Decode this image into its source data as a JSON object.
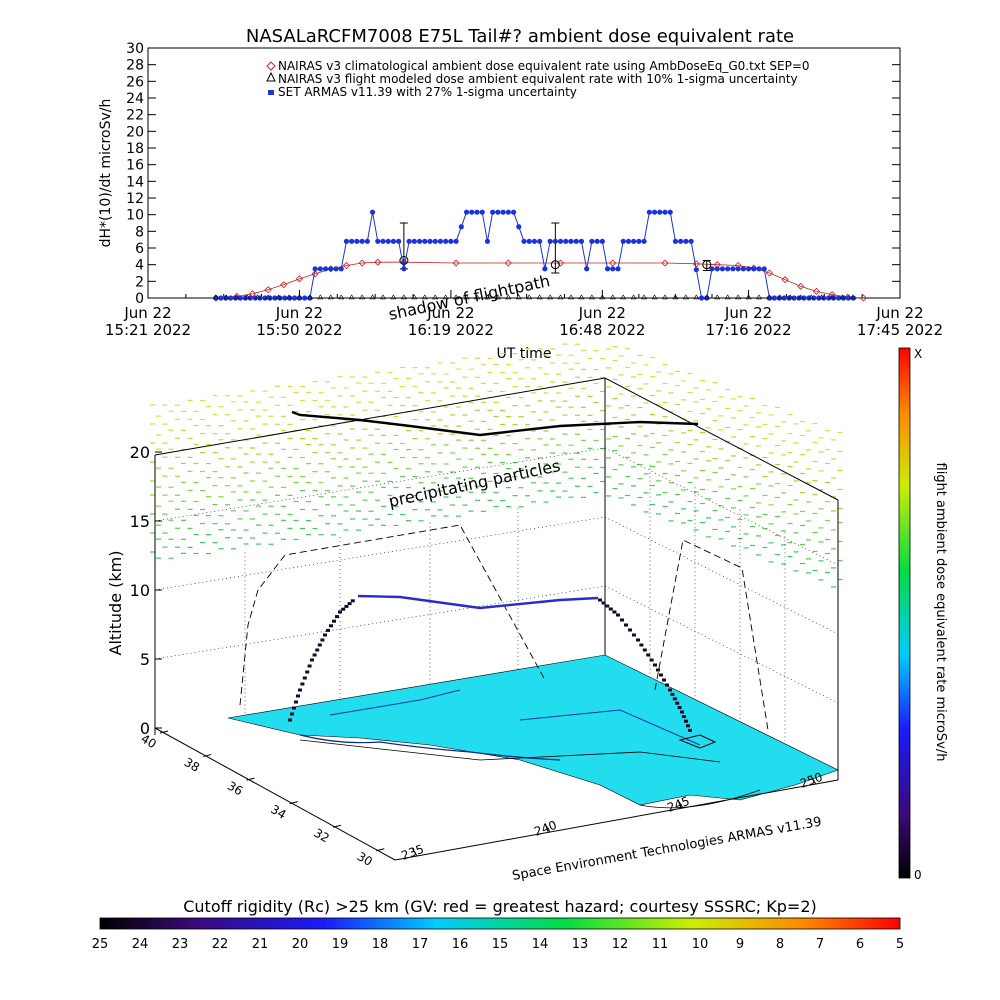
{
  "title": "NASALaRCFM7008  E75L Tail#? ambient dose equivalent rate",
  "chart_data": [
    {
      "type": "line",
      "ylabel": "dH*(10)/dt microSv/h",
      "xlabel": "UT time",
      "ylim": [
        0,
        30
      ],
      "yticks": [
        "0",
        "2",
        "4",
        "6",
        "8",
        "10",
        "12",
        "14",
        "16",
        "18",
        "20",
        "22",
        "24",
        "26",
        "28",
        "30"
      ],
      "xlim": [
        "15:21",
        "17:45"
      ],
      "xticks": [
        {
          "time": "15:21",
          "date": "Jun 22",
          "label": "15:21 2022"
        },
        {
          "time": "15:50",
          "date": "Jun 22",
          "label": "15:50 2022"
        },
        {
          "time": "16:19",
          "date": "Jun 22",
          "label": "16:19 2022"
        },
        {
          "time": "16:48",
          "date": "Jun 22",
          "label": "16:48 2022"
        },
        {
          "time": "17:16",
          "date": "Jun 22",
          "label": "17:16 2022"
        },
        {
          "time": "17:45",
          "date": "Jun 22",
          "label": "17:45 2022"
        }
      ],
      "legend": [
        "NAIRAS v3 climatological ambient dose equivalent rate using AmbDoseEq_G0.txt SEP=0",
        "NAIRAS v3 flight modeled dose ambient equivalent rate with 10% 1-sigma uncertainty",
        "SET ARMAS v11.39 with 27% 1-sigma uncertainty"
      ],
      "legend_position": "top",
      "series": [
        {
          "color": "#cc2222",
          "marker": "diamond",
          "points": [
            [
              "15:34",
              0
            ],
            [
              "15:38",
              0.2
            ],
            [
              "15:41",
              0.5
            ],
            [
              "15:44",
              1.0
            ],
            [
              "15:47",
              1.6
            ],
            [
              "15:50",
              2.3
            ],
            [
              "15:53",
              2.9
            ],
            [
              "15:56",
              3.5
            ],
            [
              "15:59",
              3.9
            ],
            [
              "16:02",
              4.2
            ],
            [
              "16:05",
              4.3
            ],
            [
              "16:10",
              4.3
            ],
            [
              "16:20",
              4.2
            ],
            [
              "16:30",
              4.2
            ],
            [
              "16:40",
              4.2
            ],
            [
              "16:50",
              4.2
            ],
            [
              "17:00",
              4.2
            ],
            [
              "17:06",
              4.1
            ],
            [
              "17:10",
              4.0
            ],
            [
              "17:14",
              3.9
            ],
            [
              "17:17",
              3.6
            ],
            [
              "17:20",
              3.0
            ],
            [
              "17:23",
              2.2
            ],
            [
              "17:26",
              1.4
            ],
            [
              "17:29",
              0.8
            ],
            [
              "17:32",
              0.4
            ],
            [
              "17:35",
              0.1
            ],
            [
              "17:38",
              0
            ]
          ]
        },
        {
          "color": "#000000",
          "marker": "triangle",
          "points": [
            [
              "16:10",
              4.5
            ],
            [
              "16:39",
              4.0
            ],
            [
              "17:08",
              4.0
            ]
          ],
          "error_bars": [
            [
              3.5,
              9.0
            ],
            [
              3.0,
              9.0
            ],
            [
              3.3,
              4.5
            ]
          ]
        },
        {
          "color": "#1a33dd",
          "marker": "square",
          "points": [
            [
              "15:34",
              0
            ],
            [
              "15:50",
              0
            ],
            [
              "15:52",
              0
            ],
            [
              "15:53",
              3.5
            ],
            [
              "15:58",
              3.5
            ],
            [
              "15:59",
              6.8
            ],
            [
              "16:03",
              6.8
            ],
            [
              "16:04",
              10.3
            ],
            [
              "16:05",
              6.8
            ],
            [
              "16:09",
              6.8
            ],
            [
              "16:10",
              3.5
            ],
            [
              "16:11",
              6.8
            ],
            [
              "16:20",
              6.8
            ],
            [
              "16:22",
              10.3
            ],
            [
              "16:25",
              10.3
            ],
            [
              "16:26",
              6.8
            ],
            [
              "16:27",
              10.3
            ],
            [
              "16:31",
              10.3
            ],
            [
              "16:33",
              6.8
            ],
            [
              "16:36",
              6.8
            ],
            [
              "16:37",
              3.5
            ],
            [
              "16:38",
              6.8
            ],
            [
              "16:44",
              6.8
            ],
            [
              "16:45",
              3.5
            ],
            [
              "16:46",
              6.8
            ],
            [
              "16:48",
              6.8
            ],
            [
              "16:49",
              3.5
            ],
            [
              "16:51",
              3.5
            ],
            [
              "16:52",
              6.8
            ],
            [
              "16:56",
              6.8
            ],
            [
              "16:57",
              10.3
            ],
            [
              "17:01",
              10.3
            ],
            [
              "17:02",
              6.8
            ],
            [
              "17:05",
              6.8
            ],
            [
              "17:07",
              0
            ],
            [
              "17:08",
              0
            ],
            [
              "17:09",
              3.5
            ],
            [
              "17:19",
              3.5
            ],
            [
              "17:20",
              0
            ],
            [
              "17:37",
              0
            ]
          ]
        }
      ]
    },
    {
      "type": "scatter",
      "title": "Space Environment Technologies ARMAS v11.39",
      "zlabel": "Altitude (km)",
      "zticks": [
        "0",
        "5",
        "10",
        "15",
        "20"
      ],
      "lat_ticks": [
        "30",
        "32",
        "34",
        "36",
        "38",
        "40"
      ],
      "lon_ticks": [
        "235",
        "240",
        "245",
        "250"
      ],
      "annotations": [
        "precipitating particles",
        "shadow of flightpath"
      ],
      "colorbar_vertical": {
        "label": "flight ambient dose equivalent rate microSv/h",
        "top": "X",
        "bottom": "0"
      },
      "colorbar_horizontal": {
        "label": "Cutoff rigidity (Rc) >25 km (GV: red = greatest hazard; courtesy SSSRC; Kp=2)",
        "ticks": [
          "25",
          "24",
          "23",
          "22",
          "21",
          "20",
          "19",
          "18",
          "17",
          "16",
          "15",
          "14",
          "13",
          "12",
          "11",
          "10",
          "9",
          "8",
          "7",
          "6",
          "5"
        ]
      }
    }
  ]
}
